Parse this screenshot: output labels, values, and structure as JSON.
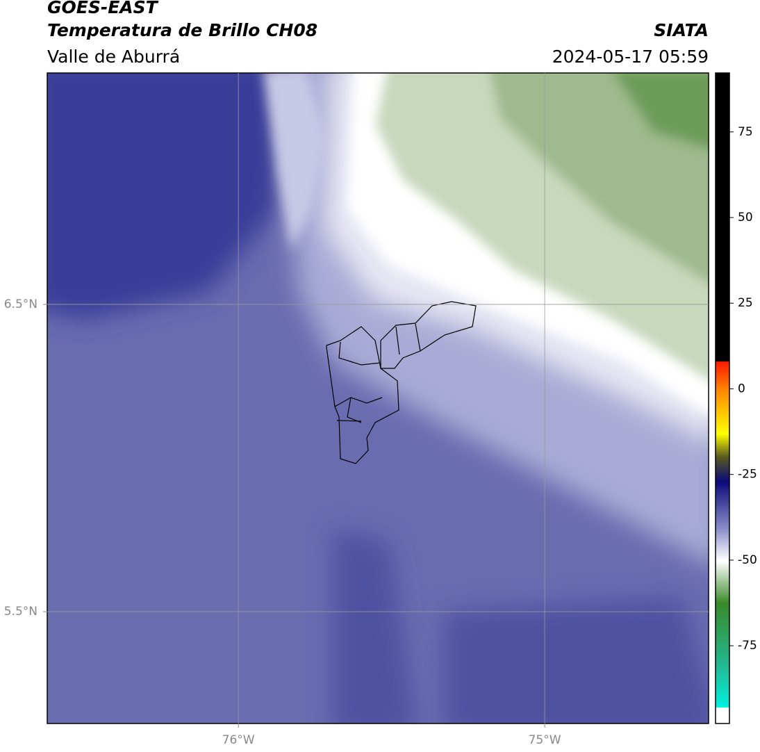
{
  "header": {
    "satellite": "GOES-EAST",
    "product": "Temperatura de Brillo CH08",
    "region": "Valle de Aburrá",
    "source": "SIATA",
    "timestamp": "2024-05-17 05:59"
  },
  "map": {
    "lon_lim": [
      -76.624,
      -74.465
    ],
    "lat_lim": [
      5.136,
      7.253
    ],
    "lat_ticks": [
      {
        "value": 6.5,
        "label": "6.5°N"
      },
      {
        "value": 5.5,
        "label": "5.5°N"
      }
    ],
    "lon_ticks": [
      {
        "value": -76,
        "label": "76°W"
      },
      {
        "value": -75,
        "label": "75°W"
      }
    ],
    "grid": true
  },
  "colorbar": {
    "lim": [
      -97.7,
      92.2
    ],
    "ticks": [
      75,
      50,
      25,
      0,
      -25,
      -50,
      -75
    ]
  }
}
